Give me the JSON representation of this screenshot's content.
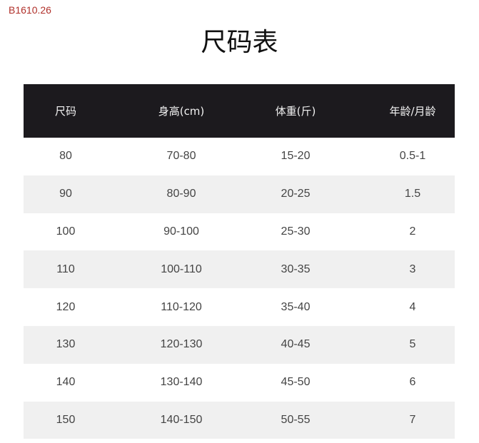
{
  "code": "B1610.26",
  "title": "尺码表",
  "headers": [
    "尺码",
    "身高(cm)",
    "体重(斤)",
    "年龄/月龄"
  ],
  "rows": [
    [
      "80",
      "70-80",
      "15-20",
      "0.5-1"
    ],
    [
      "90",
      "80-90",
      "20-25",
      "1.5"
    ],
    [
      "100",
      "90-100",
      "25-30",
      "2"
    ],
    [
      "110",
      "100-110",
      "30-35",
      "3"
    ],
    [
      "120",
      "110-120",
      "35-40",
      "4"
    ],
    [
      "130",
      "120-130",
      "40-45",
      "5"
    ],
    [
      "140",
      "130-140",
      "45-50",
      "6"
    ],
    [
      "150",
      "140-150",
      "50-55",
      "7"
    ]
  ],
  "colors": {
    "header_bg": "#1c1a1e",
    "alt_row_bg": "#f0f0f0",
    "code_color": "#b0302a"
  }
}
